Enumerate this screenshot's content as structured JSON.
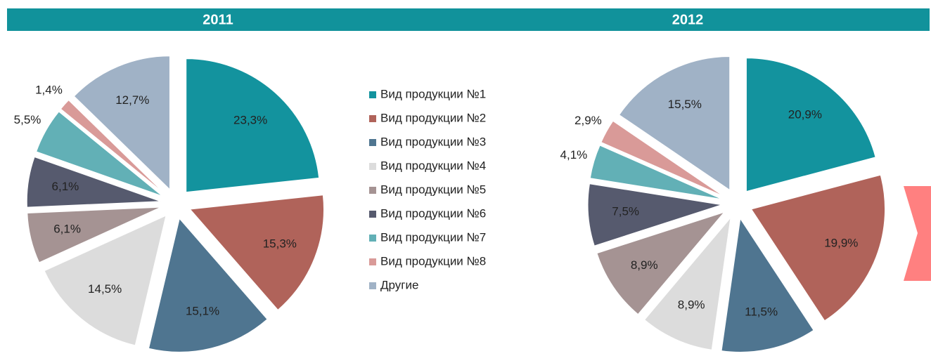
{
  "chart_data": [
    {
      "type": "pie",
      "title": "2011",
      "values": [
        23.3,
        15.3,
        15.1,
        14.5,
        6.1,
        6.1,
        5.5,
        1.4,
        12.7
      ],
      "value_labels": [
        "23,3%",
        "15,3%",
        "15,1%",
        "14,5%",
        "6,1%",
        "6,1%",
        "5,5%",
        "1,4%",
        "12,7%"
      ]
    },
    {
      "type": "pie",
      "title": "2012",
      "values": [
        20.9,
        19.9,
        11.5,
        8.9,
        8.9,
        7.5,
        4.1,
        2.9,
        15.5
      ],
      "value_labels": [
        "20,9%",
        "19,9%",
        "11,5%",
        "8,9%",
        "8,9%",
        "7,5%",
        "4,1%",
        "2,9%",
        "15,5%"
      ]
    }
  ],
  "legend": {
    "labels": [
      "Вид продукции №1",
      "Вид продукции №2",
      "Вид продукции №3",
      "Вид продукции №4",
      "Вид продукции №5",
      "Вид продукции №6",
      "Вид продукции №7",
      "Вид продукции №8",
      "Другие"
    ],
    "colors": [
      "#13939e",
      "#b0635a",
      "#4f7590",
      "#dcdcdc",
      "#a59393",
      "#565a6e",
      "#62b0b6",
      "#d99a98",
      "#a0b2c6"
    ]
  }
}
